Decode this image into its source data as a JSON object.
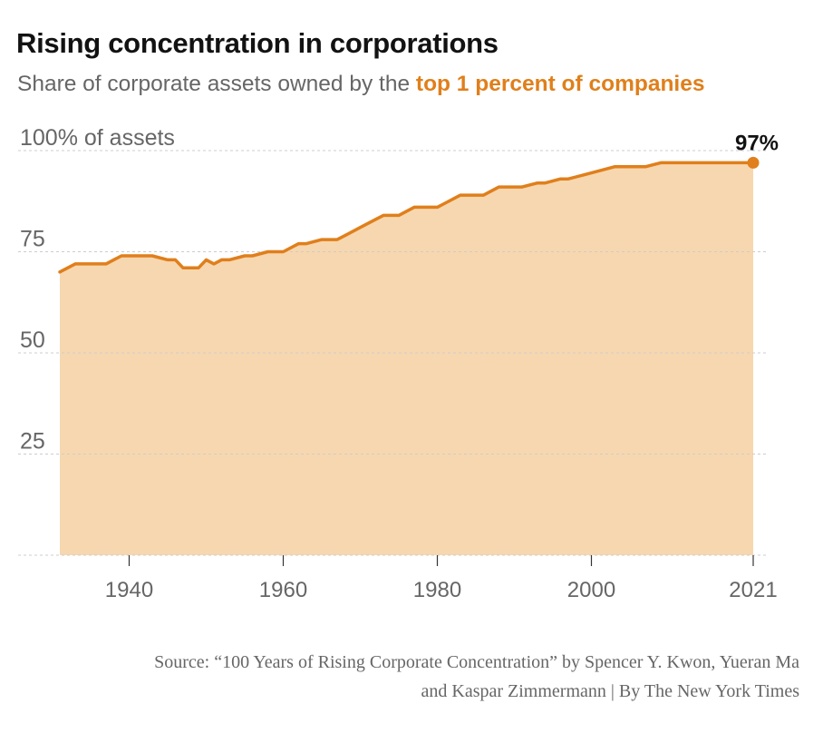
{
  "chart_data": {
    "type": "area",
    "title": "Rising concentration in corporations",
    "subtitle_prefix": "Share of corporate assets owned by the ",
    "subtitle_highlight": "top 1 percent of companies",
    "y_tick_labels": [
      "100% of assets",
      "75",
      "50",
      "25"
    ],
    "y_ticks": [
      100,
      75,
      50,
      25
    ],
    "ylim": [
      0,
      100
    ],
    "x_tick_labels": [
      "1940",
      "1960",
      "1980",
      "2000",
      "2021"
    ],
    "x_ticks": [
      1940,
      1960,
      1980,
      2000,
      2021
    ],
    "xlim": [
      1931,
      2021
    ],
    "end_label": "97%",
    "grid": true,
    "colors": {
      "line": "#e07f1b",
      "fill": "#f7d7b0",
      "grid": "#cccccc"
    },
    "series": [
      {
        "x": [
          1931,
          1933,
          1935,
          1937,
          1939,
          1941,
          1943,
          1945,
          1946,
          1947,
          1949,
          1950,
          1951,
          1952,
          1953,
          1955,
          1956,
          1958,
          1960,
          1962,
          1963,
          1965,
          1967,
          1968,
          1970,
          1972,
          1973,
          1975,
          1977,
          1979,
          1980,
          1981,
          1983,
          1985,
          1986,
          1988,
          1990,
          1991,
          1993,
          1994,
          1996,
          1997,
          1999,
          2001,
          2003,
          2005,
          2006,
          2007,
          2009,
          2011,
          2013,
          2015,
          2017,
          2019,
          2021
        ],
        "y": [
          70,
          72,
          72,
          72,
          74,
          74,
          74,
          73,
          73,
          71,
          71,
          73,
          72,
          73,
          73,
          74,
          74,
          75,
          75,
          77,
          77,
          78,
          78,
          79,
          81,
          83,
          84,
          84,
          86,
          86,
          86,
          87,
          89,
          89,
          89,
          91,
          91,
          91,
          92,
          92,
          93,
          93,
          94,
          95,
          96,
          96,
          96,
          96,
          97,
          97,
          97,
          97,
          97,
          97,
          97
        ]
      }
    ]
  },
  "source_line_1": "Source: “100 Years of Rising Corporate Concentration” by Spencer Y. Kwon, Yueran Ma",
  "source_line_2": "and Kaspar Zimmermann | By The New York Times"
}
